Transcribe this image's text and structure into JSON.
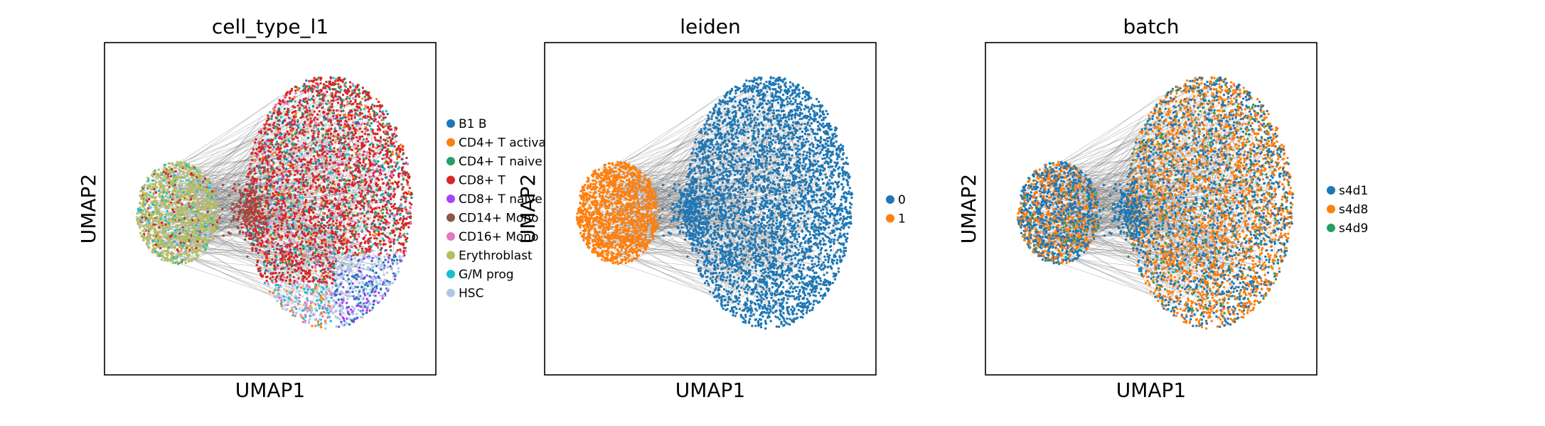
{
  "chart_data": [
    {
      "type": "scatter",
      "title": "cell_type_l1",
      "xlabel": "UMAP1",
      "ylabel": "UMAP2",
      "legend_placement": "right",
      "grid": false,
      "legend": [
        {
          "label": "B1 B",
          "color": "#1f77b4"
        },
        {
          "label": "CD4+ T activa",
          "color": "#ff7f0e"
        },
        {
          "label": "CD4+ T naive",
          "color": "#279e68"
        },
        {
          "label": "CD8+ T",
          "color": "#d62728"
        },
        {
          "label": "CD8+ T naive",
          "color": "#aa40fc"
        },
        {
          "label": "CD14+ Mono",
          "color": "#8c564b"
        },
        {
          "label": "CD16+ Mono",
          "color": "#e377c2"
        },
        {
          "label": "Erythroblast",
          "color": "#b5bd61"
        },
        {
          "label": "G/M prog",
          "color": "#17becf"
        },
        {
          "label": "HSC",
          "color": "#aec7e8"
        }
      ]
    },
    {
      "type": "scatter",
      "title": "leiden",
      "xlabel": "UMAP1",
      "ylabel": "UMAP2",
      "legend_placement": "right",
      "grid": false,
      "legend": [
        {
          "label": "0",
          "color": "#1f77b4"
        },
        {
          "label": "1",
          "color": "#ff7f0e"
        }
      ]
    },
    {
      "type": "scatter",
      "title": "batch",
      "xlabel": "UMAP1",
      "ylabel": "UMAP2",
      "legend_placement": "right",
      "grid": false,
      "legend": [
        {
          "label": "s4d1",
          "color": "#1f77b4"
        },
        {
          "label": "s4d8",
          "color": "#ff7f0e"
        },
        {
          "label": "s4d9",
          "color": "#279e68"
        }
      ]
    }
  ]
}
